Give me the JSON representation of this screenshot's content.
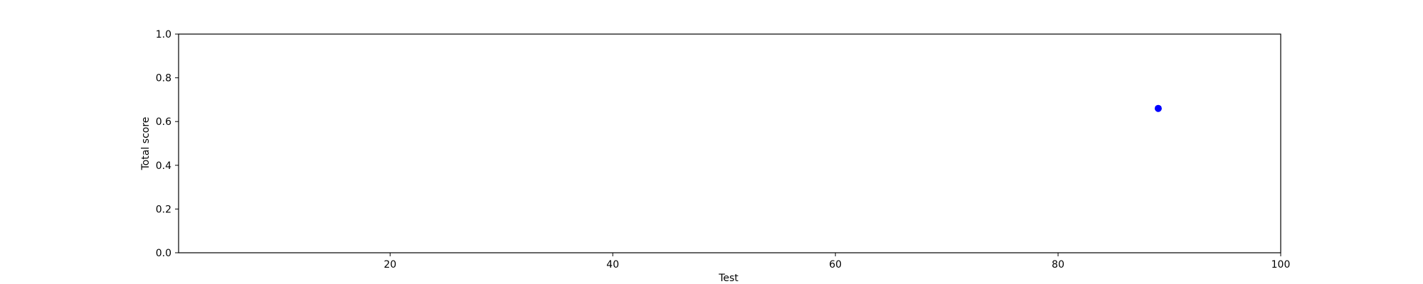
{
  "chart_data": {
    "type": "scatter",
    "title": "",
    "xlabel": "Test",
    "ylabel": "Total score",
    "xlim": [
      1,
      100
    ],
    "ylim": [
      0.0,
      1.0
    ],
    "x_ticks": [
      20,
      40,
      60,
      80,
      100
    ],
    "y_ticks": [
      0.0,
      0.2,
      0.4,
      0.6,
      0.8,
      1.0
    ],
    "x_tick_labels": [
      "20",
      "40",
      "60",
      "80",
      "100"
    ],
    "y_tick_labels": [
      "0.0",
      "0.2",
      "0.4",
      "0.6",
      "0.8",
      "1.0"
    ],
    "grid": false,
    "series": [
      {
        "color": "#0000ff",
        "points": [
          {
            "x": 89,
            "y": 0.66
          }
        ]
      }
    ]
  }
}
